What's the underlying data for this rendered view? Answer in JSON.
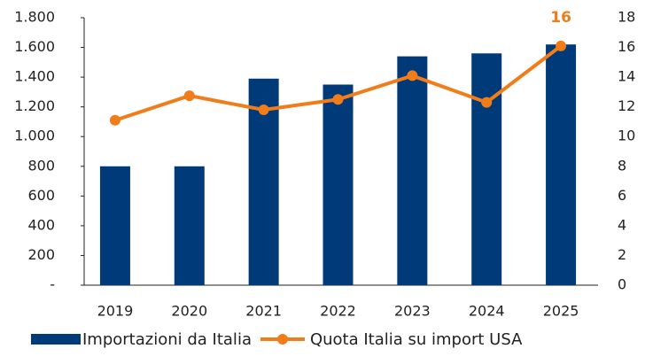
{
  "chart_data": {
    "type": "bar_line",
    "categories": [
      "2019",
      "2020",
      "2021",
      "2022",
      "2023",
      "2024",
      "2025"
    ],
    "series": [
      {
        "name": "Importazioni da Italia",
        "type": "bar",
        "color": "#003a78",
        "values": [
          800,
          800,
          1390,
          1350,
          1540,
          1560,
          1620
        ]
      },
      {
        "name": "Quota Italia su import USA",
        "type": "line",
        "axis": "y2",
        "color": "#f07d1a",
        "values": [
          11.1,
          12.75,
          11.8,
          12.5,
          14.1,
          12.3,
          16.1
        ],
        "value_labels": [
          null,
          null,
          null,
          null,
          null,
          null,
          "16"
        ]
      }
    ],
    "ylim": [
      0,
      1800
    ],
    "yticks": [
      {
        "value": 0,
        "label": "-"
      },
      200,
      400,
      600,
      800,
      {
        "value": 1000,
        "label": "1.000"
      },
      {
        "value": 1200,
        "label": "1.200"
      },
      {
        "value": 1400,
        "label": "1.400"
      },
      {
        "value": 1600,
        "label": "1.600"
      },
      {
        "value": 1800,
        "label": "1.800"
      }
    ],
    "y2lim": [
      0,
      18
    ],
    "y2ticks": [
      0,
      2,
      4,
      6,
      8,
      10,
      12,
      14,
      16,
      18
    ],
    "legend": "bottom"
  }
}
